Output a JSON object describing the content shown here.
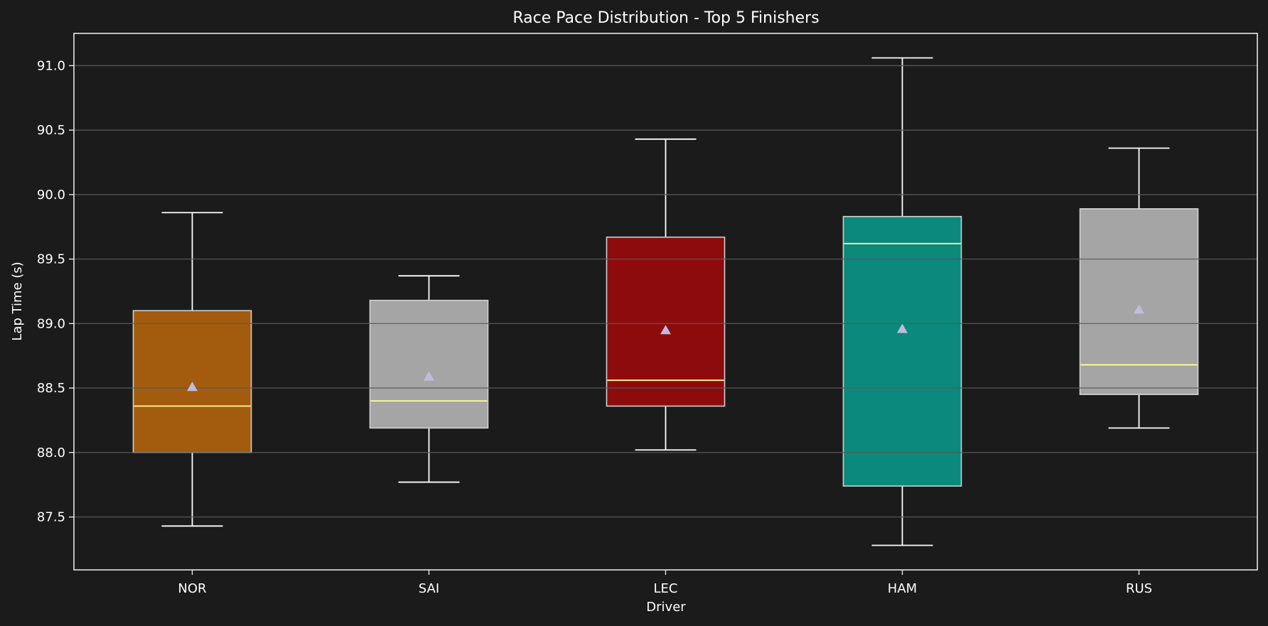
{
  "chart_data": {
    "type": "boxplot",
    "title": "Race Pace Distribution - Top 5 Finishers",
    "xlabel": "Driver",
    "ylabel": "Lap Time (s)",
    "ylim": [
      87.09,
      91.25
    ],
    "yticks": [
      "87.5",
      "88.0",
      "88.5",
      "89.0",
      "89.5",
      "90.0",
      "90.5",
      "91.0"
    ],
    "grid": "y",
    "legend": null,
    "categories": [
      "NOR",
      "SAI",
      "LEC",
      "HAM",
      "RUS"
    ],
    "series": [
      {
        "name": "NOR",
        "color": "#FF8000",
        "fill": "#A35C0D",
        "whisker_low": 87.43,
        "q1": 88.0,
        "median": 88.36,
        "mean": 88.51,
        "q3": 89.1,
        "whisker_high": 89.86
      },
      {
        "name": "SAI",
        "color": "#FFFFFF",
        "fill": "#A5A5A5",
        "whisker_low": 87.77,
        "q1": 88.19,
        "median": 88.4,
        "mean": 88.59,
        "q3": 89.18,
        "whisker_high": 89.37
      },
      {
        "name": "LEC",
        "color": "#DC0000",
        "fill": "#8D0B0C",
        "whisker_low": 88.02,
        "q1": 88.36,
        "median": 88.56,
        "mean": 88.95,
        "q3": 89.67,
        "whisker_high": 90.43
      },
      {
        "name": "HAM",
        "color": "#00D2BE",
        "fill": "#0A897C",
        "whisker_low": 87.28,
        "q1": 87.74,
        "median": 89.62,
        "mean": 88.96,
        "q3": 89.83,
        "whisker_high": 91.06
      },
      {
        "name": "RUS",
        "color": "#FFFFFF",
        "fill": "#A5A5A5",
        "whisker_low": 88.19,
        "q1": 88.45,
        "median": 88.68,
        "mean": 89.11,
        "q3": 89.89,
        "whisker_high": 90.36
      }
    ]
  },
  "colors": {
    "background": "#1b1b1b",
    "grid": "#5a5a5a",
    "spine": "#e6e6e6",
    "whisker": "#ffffff",
    "median": "#ffff99",
    "mean_marker": "#c0bcdc",
    "box_edge": "#d0d0d0"
  }
}
